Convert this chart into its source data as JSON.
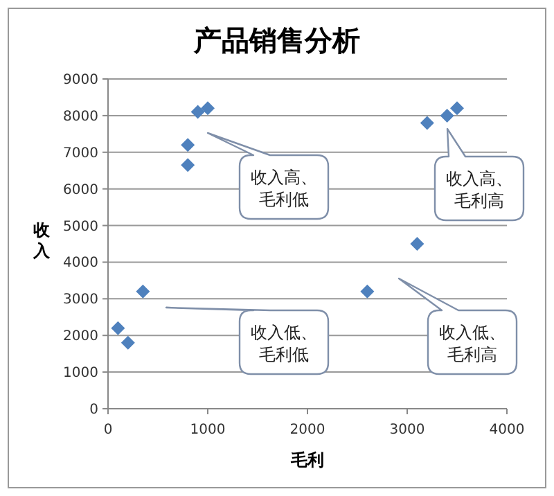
{
  "chart_data": {
    "type": "scatter",
    "title": "产品销售分析",
    "xlabel": "毛利",
    "ylabel": "收入",
    "x": [
      100,
      200,
      350,
      800,
      800,
      900,
      1000,
      2600,
      3100,
      3200,
      3400,
      3500
    ],
    "series": [
      {
        "color": "#4f81bd",
        "values": [
          2200,
          1800,
          3200,
          7200,
          6650,
          8100,
          8200,
          3200,
          4500,
          7800,
          8000,
          8200
        ]
      }
    ],
    "xlim": [
      0,
      4000
    ],
    "xticks": [
      0,
      1000,
      2000,
      3000,
      4000
    ],
    "ylim": [
      0,
      9000
    ],
    "yticks": [
      0,
      1000,
      2000,
      3000,
      4000,
      5000,
      6000,
      7000,
      8000,
      9000
    ],
    "grid": "y",
    "marker": "diamond",
    "annotations": [
      "收入高、毛利低",
      "收入低、毛利低",
      "收入高、毛利高",
      "收入低、毛利高"
    ]
  }
}
